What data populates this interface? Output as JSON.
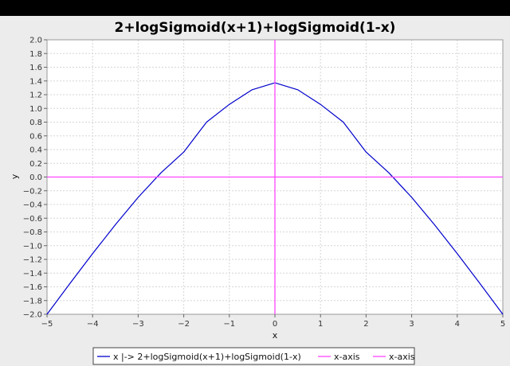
{
  "chart_data": {
    "type": "line",
    "title": "2+logSigmoid(x+1)+logSigmoid(1-x)",
    "xlabel": "x",
    "ylabel": "y",
    "xlim": [
      -5,
      5
    ],
    "ylim": [
      -2.0,
      2.0
    ],
    "x_ticks": [
      "-5",
      "-4",
      "-3",
      "-2",
      "-1",
      "0",
      "1",
      "2",
      "3",
      "4",
      "5"
    ],
    "y_ticks": [
      "2.0",
      "1.8",
      "1.6",
      "1.4",
      "1.2",
      "1.0",
      "0.8",
      "0.6",
      "0.4",
      "0.2",
      "0.0",
      "-0.2",
      "-0.4",
      "-0.6",
      "-0.8",
      "-1.0",
      "-1.2",
      "-1.4",
      "-1.6",
      "-1.8",
      "-2.0"
    ],
    "grid": true,
    "legend_position": "bottom",
    "series": [
      {
        "name": "x |-> 2+logSigmoid(x+1)+logSigmoid(1-x)",
        "color": "#0000cc",
        "x": [
          -5.0,
          -4.5,
          -4.0,
          -3.5,
          -3.0,
          -2.5,
          -2.0,
          -1.5,
          -1.0,
          -0.5,
          0.0,
          0.5,
          1.0,
          1.5,
          2.0,
          2.5,
          3.0,
          3.5,
          4.0,
          4.5,
          5.0
        ],
        "y": [
          -2.0,
          -1.554,
          -1.117,
          -0.694,
          -0.296,
          0.061,
          0.364,
          0.8,
          1.058,
          1.272,
          1.373,
          1.272,
          1.058,
          0.8,
          0.364,
          0.061,
          -0.296,
          -0.694,
          -1.117,
          -1.554,
          -2.0
        ]
      },
      {
        "name": "x-axis",
        "color": "#ff44ff",
        "orientation": "horizontal",
        "value": 0
      },
      {
        "name": "x-axis",
        "color": "#ff44ff",
        "orientation": "vertical",
        "value": 0
      }
    ]
  }
}
